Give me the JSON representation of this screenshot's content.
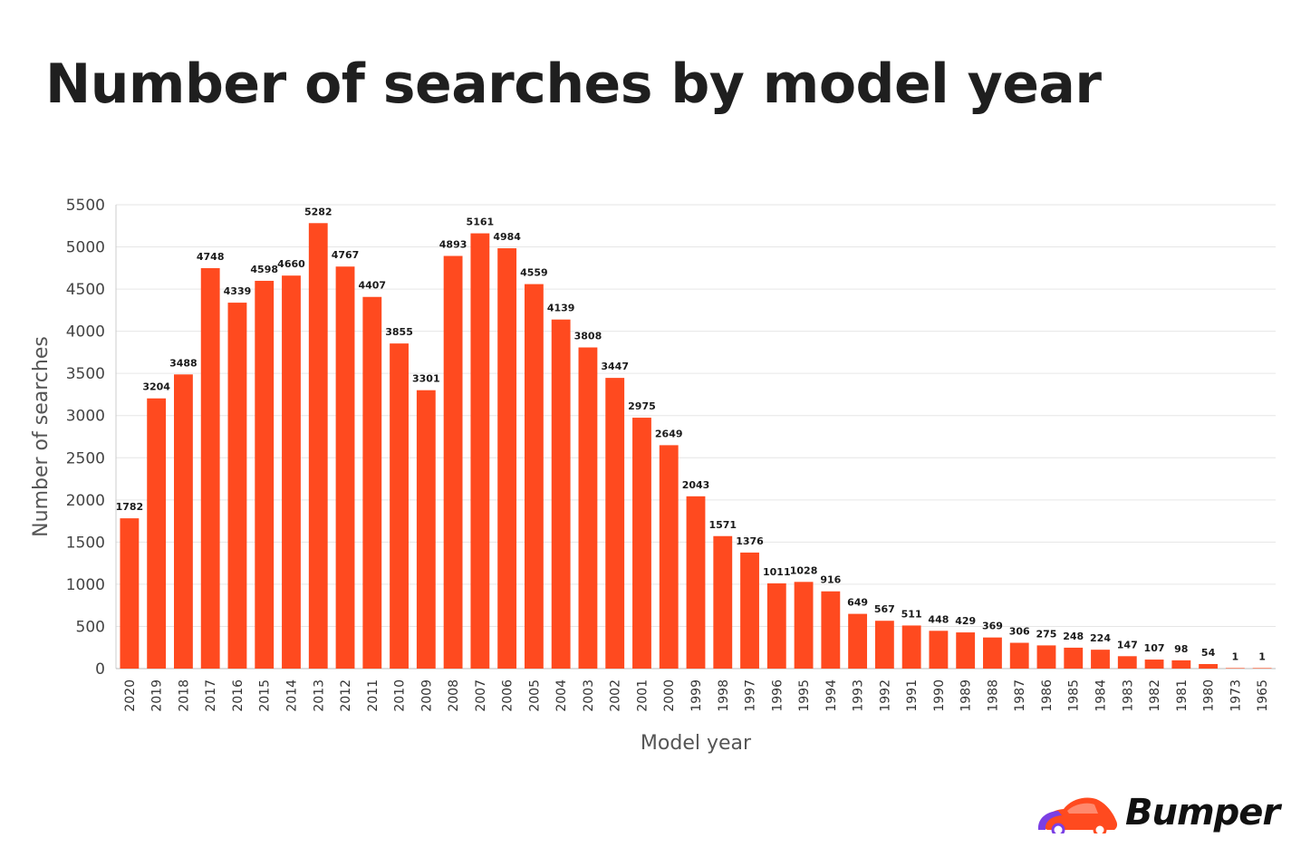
{
  "title": "Number of searches by model year",
  "brand": {
    "name": "Bumper",
    "colors": {
      "car_primary": "#ff4a1f",
      "car_accent": "#7b3fe4"
    }
  },
  "chart_data": {
    "type": "bar",
    "xlabel": "Model year",
    "ylabel": "Number of searches",
    "ylim": [
      0,
      5500
    ],
    "yticks": [
      0,
      500,
      1000,
      1500,
      2000,
      2500,
      3000,
      3500,
      4000,
      4500,
      5000,
      5500
    ],
    "grid": true,
    "bar_color": "#ff4a1f",
    "categories": [
      "2020",
      "2019",
      "2018",
      "2017",
      "2016",
      "2015",
      "2014",
      "2013",
      "2012",
      "2011",
      "2010",
      "2009",
      "2008",
      "2007",
      "2006",
      "2005",
      "2004",
      "2003",
      "2002",
      "2001",
      "2000",
      "1999",
      "1998",
      "1997",
      "1996",
      "1995",
      "1994",
      "1993",
      "1992",
      "1991",
      "1990",
      "1989",
      "1988",
      "1987",
      "1986",
      "1985",
      "1984",
      "1983",
      "1982",
      "1981",
      "1980",
      "1973",
      "1965"
    ],
    "values": [
      1782,
      3204,
      3488,
      4748,
      4339,
      4598,
      4660,
      5282,
      4767,
      4407,
      3855,
      3301,
      4893,
      5161,
      4984,
      4559,
      4139,
      3808,
      3447,
      2975,
      2649,
      2043,
      1571,
      1376,
      1011,
      1028,
      916,
      649,
      567,
      511,
      448,
      429,
      369,
      306,
      275,
      248,
      224,
      147,
      107,
      98,
      54,
      1,
      1
    ]
  }
}
